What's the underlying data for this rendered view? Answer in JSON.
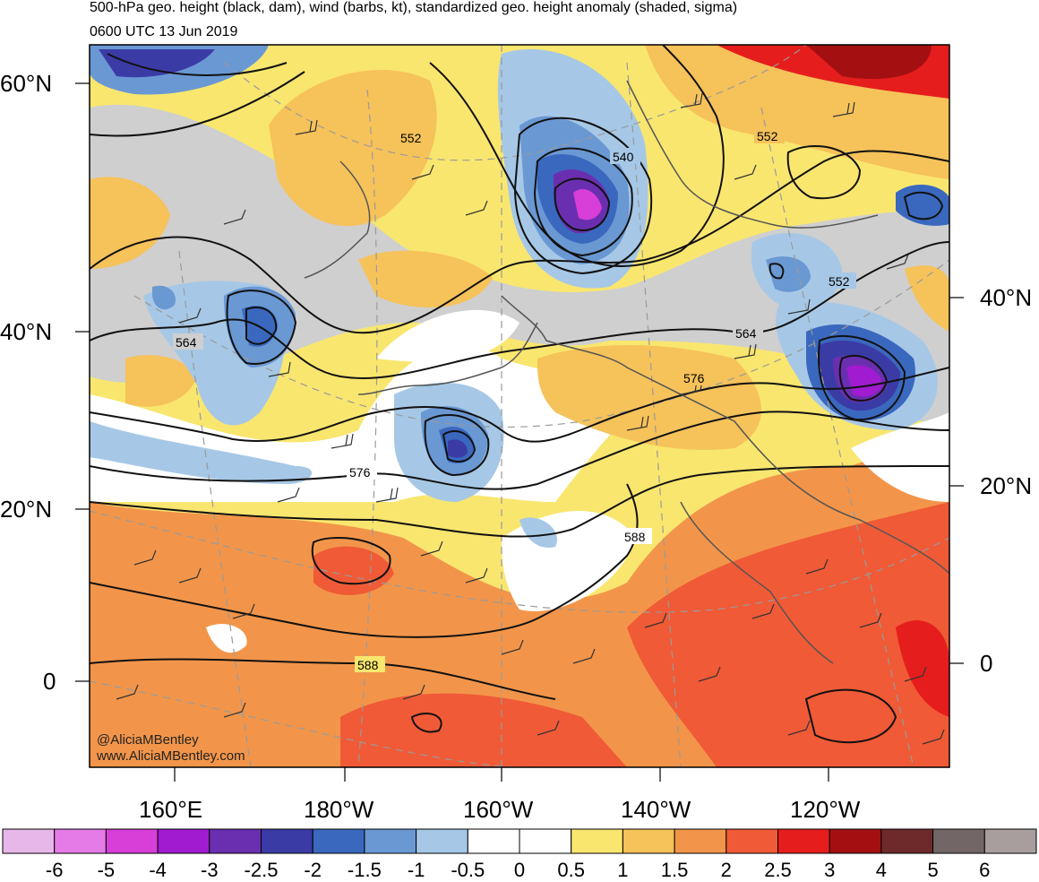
{
  "title": {
    "line1": "500-hPa geo. height (black, dam), wind (barbs, kt), standardized geo. height anomaly (shaded, sigma)",
    "line2": "0600 UTC 13 Jun 2019"
  },
  "lat_labels_left": [
    "60°N",
    "40°N",
    "20°N",
    "0"
  ],
  "lat_labels_right": [
    "40°N",
    "20°N",
    "0"
  ],
  "lon_labels": [
    "160°E",
    "180°W",
    "160°W",
    "140°W",
    "120°W"
  ],
  "contour_labels": [
    "552",
    "540",
    "552",
    "552",
    "564",
    "564",
    "576",
    "576",
    "588",
    "588"
  ],
  "credit": {
    "handle": "@AliciaMBentley",
    "website": "www.AliciaMBentley.com"
  },
  "colorbar": {
    "colors": [
      "#e8b7e9",
      "#e57be6",
      "#d73fd8",
      "#a11bd0",
      "#6a2fb0",
      "#3b3ba6",
      "#3a68be",
      "#6a98d3",
      "#a6c8e6",
      "#ffffff",
      "#ffffff",
      "#f9e66f",
      "#f6c25a",
      "#f2954a",
      "#f05a36",
      "#e61d1d",
      "#a41012",
      "#6e2a2a",
      "#726667",
      "#a89e9e"
    ],
    "labels": [
      "-6",
      "-5",
      "-4",
      "-3",
      "-2.5",
      "-2",
      "-1.5",
      "-1",
      "-0.5",
      "0",
      "0.5",
      "1",
      "1.5",
      "2",
      "2.5",
      "3",
      "4",
      "5",
      "6"
    ]
  }
}
